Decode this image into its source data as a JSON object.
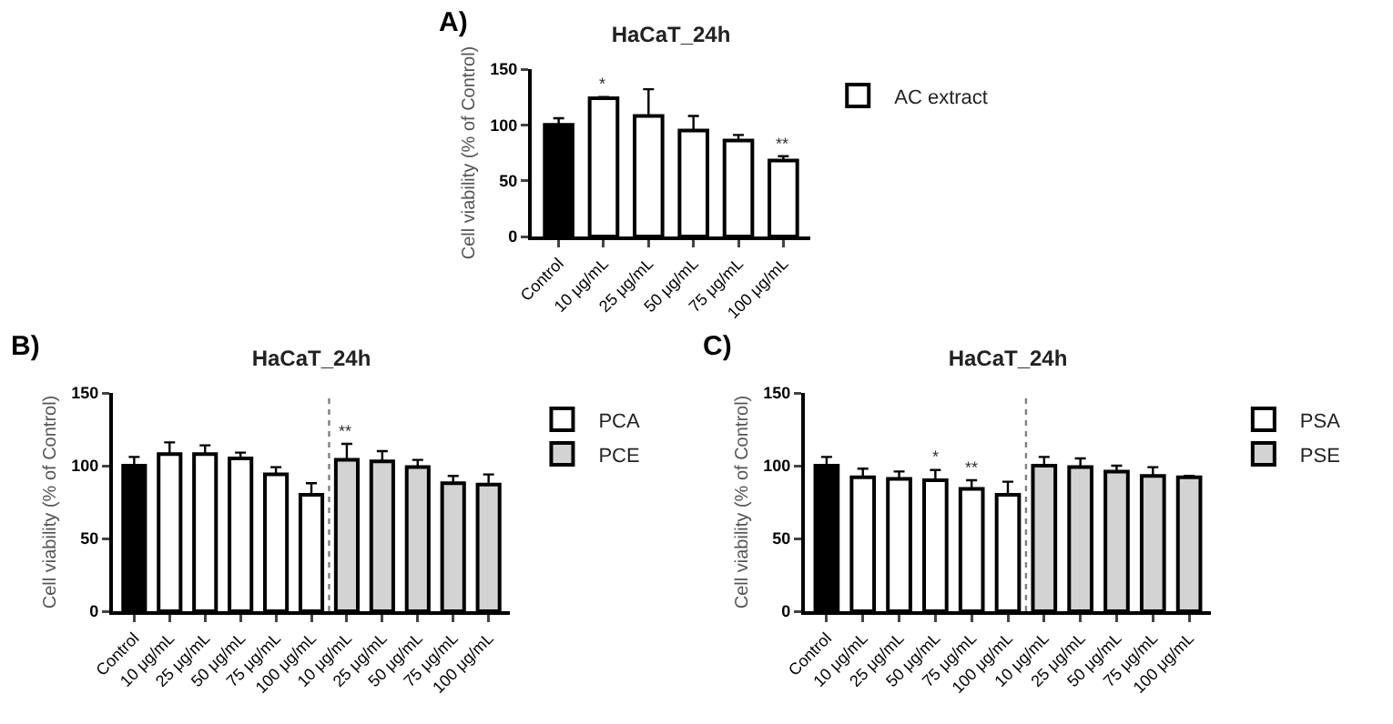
{
  "chart_data": [
    {
      "type": "bar",
      "title": "HaCaT_24h",
      "ylabel": "Cell viability (% of Control)",
      "annotations": [
        "A)"
      ],
      "categories": [
        "Control",
        "10 μg/mL",
        "25 μg/mL",
        "50 μg/mL",
        "75 μg/mL",
        "100 μg/mL"
      ],
      "ylim": [
        0,
        150
      ],
      "yticks": [
        0,
        50,
        100,
        150
      ],
      "grid": false,
      "legend": "top right",
      "series": [
        {
          "color": "#000000",
          "values": [
            100,
            null,
            null,
            null,
            null,
            null
          ],
          "errors": [
            6,
            null,
            null,
            null,
            null,
            null
          ]
        },
        {
          "name": "AC extract",
          "color": "#ffffff",
          "values": [
            null,
            124,
            108,
            95,
            86,
            68
          ],
          "errors": [
            null,
            1,
            24,
            13,
            5,
            4
          ],
          "value_labels": [
            null,
            "*",
            null,
            null,
            null,
            "**"
          ]
        }
      ]
    },
    {
      "type": "bar",
      "title": "HaCaT_24h",
      "ylabel": "Cell viability (% of Control)",
      "annotations": [
        "B)"
      ],
      "categories": [
        "Control",
        "10 μg/mL",
        "25 μg/mL",
        "50 μg/mL",
        "75 μg/mL",
        "100 μg/mL",
        "10 μg/mL",
        "25 μg/mL",
        "50 μg/mL",
        "75 μg/mL",
        "100 μg/mL"
      ],
      "ylim": [
        0,
        150
      ],
      "yticks": [
        0,
        50,
        100,
        150
      ],
      "grid": false,
      "legend": "top right",
      "series": [
        {
          "color": "#000000",
          "values": [
            100,
            null,
            null,
            null,
            null,
            null,
            null,
            null,
            null,
            null,
            null
          ],
          "errors": [
            6,
            null,
            null,
            null,
            null,
            null,
            null,
            null,
            null,
            null,
            null
          ]
        },
        {
          "name": "PCA",
          "color": "#ffffff",
          "values": [
            null,
            108,
            108,
            105,
            94,
            80,
            null,
            null,
            null,
            null,
            null
          ],
          "errors": [
            null,
            8,
            6,
            4,
            5,
            8,
            null,
            null,
            null,
            null,
            null
          ]
        },
        {
          "name": "PCE",
          "color": "#d3d3d3",
          "values": [
            null,
            null,
            null,
            null,
            null,
            null,
            104,
            103,
            99,
            88,
            87
          ],
          "errors": [
            null,
            null,
            null,
            null,
            null,
            null,
            11,
            7,
            5,
            5,
            7
          ],
          "value_labels": [
            null,
            null,
            null,
            null,
            null,
            null,
            "**",
            null,
            null,
            null,
            null
          ]
        }
      ]
    },
    {
      "type": "bar",
      "title": "HaCaT_24h",
      "ylabel": "Cell viability (% of Control)",
      "annotations": [
        "C)"
      ],
      "categories": [
        "Control",
        "10 μg/mL",
        "25 μg/mL",
        "50 μg/mL",
        "75 μg/mL",
        "100 μg/mL",
        "10 μg/mL",
        "25 μg/mL",
        "50 μg/mL",
        "75 μg/mL",
        "100 μg/mL"
      ],
      "ylim": [
        0,
        150
      ],
      "yticks": [
        0,
        50,
        100,
        150
      ],
      "grid": false,
      "legend": "top right",
      "series": [
        {
          "color": "#000000",
          "values": [
            100,
            null,
            null,
            null,
            null,
            null,
            null,
            null,
            null,
            null,
            null
          ],
          "errors": [
            6,
            null,
            null,
            null,
            null,
            null,
            null,
            null,
            null,
            null,
            null
          ]
        },
        {
          "name": "PSA",
          "color": "#ffffff",
          "values": [
            null,
            92,
            91,
            90,
            84,
            80,
            null,
            null,
            null,
            null,
            null
          ],
          "errors": [
            null,
            6,
            5,
            7,
            6,
            9,
            null,
            null,
            null,
            null,
            null
          ],
          "value_labels": [
            null,
            null,
            null,
            "*",
            "**",
            null,
            null,
            null,
            null,
            null,
            null
          ]
        },
        {
          "name": "PSE",
          "color": "#d3d3d3",
          "values": [
            null,
            null,
            null,
            null,
            null,
            null,
            100,
            99,
            96,
            93,
            92
          ],
          "errors": [
            null,
            null,
            null,
            null,
            null,
            null,
            6,
            6,
            4,
            6,
            1
          ]
        }
      ]
    }
  ]
}
